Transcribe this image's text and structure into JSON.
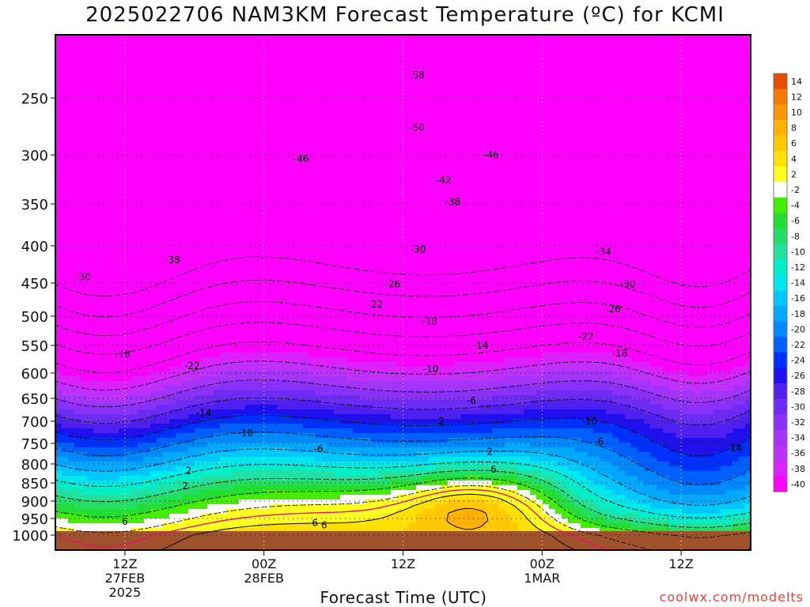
{
  "title": "2025022706 NAM3KM Forecast Temperature (ºC) for KCMI",
  "credit": "coolwx.com/modelts",
  "chart_data": {
    "type": "heatmap",
    "title": "2025022706 NAM3KM Forecast Temperature (ºC) for KCMI",
    "xlabel": "Forecast Time (UTC)",
    "ylabel": "",
    "y_scale": "pressure (reversed, log-like)",
    "y_ticks": [
      250,
      300,
      350,
      400,
      450,
      500,
      550,
      600,
      650,
      700,
      750,
      800,
      850,
      900,
      950,
      1000
    ],
    "y_range": [
      1020,
      200
    ],
    "x_ticks": [
      {
        "label": "12Z",
        "sub1": "27FEB",
        "sub2": "2025",
        "hour": 12
      },
      {
        "label": "00Z",
        "sub1": "28FEB",
        "sub2": "",
        "hour": 24
      },
      {
        "label": "12Z",
        "sub1": "",
        "sub2": "",
        "hour": 36
      },
      {
        "label": "00Z",
        "sub1": "1MAR",
        "sub2": "",
        "hour": 48
      },
      {
        "label": "12Z",
        "sub1": "",
        "sub2": "",
        "hour": 60
      }
    ],
    "x_range": [
      6,
      66
    ],
    "colorbar_ticks": [
      "14",
      "12",
      "10",
      "8",
      "6",
      "4",
      "2",
      "-2",
      "-4",
      "-6",
      "-8",
      "-10",
      "-12",
      "-14",
      "-16",
      "-18",
      "-20",
      "-22",
      "-24",
      "-26",
      "-28",
      "-30",
      "-32",
      "-34",
      "-36",
      "-38",
      "-40"
    ],
    "colorbar_colors": [
      "#e64d00",
      "#f57a00",
      "#fa9600",
      "#ffb000",
      "#ffc800",
      "#ffe000",
      "#ffff20",
      "#ffffff",
      "#44ee00",
      "#22dd33",
      "#22dd66",
      "#22e0a0",
      "#00eec8",
      "#00e8ee",
      "#00c8ff",
      "#00a8ff",
      "#0088ff",
      "#0060ff",
      "#0030ff",
      "#2010ee",
      "#5020f0",
      "#6c2cf4",
      "#8a30f8",
      "#a434fa",
      "#c030fc",
      "#dc20fe",
      "#ff00ff"
    ],
    "isotherm_labels": [
      {
        "text": "-58",
        "hour": 37.2,
        "p": 232
      },
      {
        "text": "-50",
        "hour": 37.2,
        "p": 276
      },
      {
        "text": "-46",
        "hour": 27.2,
        "p": 304
      },
      {
        "text": "-46",
        "hour": 43.6,
        "p": 300
      },
      {
        "text": "-42",
        "hour": 39.5,
        "p": 326
      },
      {
        "text": "-38",
        "hour": 40.3,
        "p": 348
      },
      {
        "text": "-38",
        "hour": 16.1,
        "p": 419
      },
      {
        "text": "-34",
        "hour": 53.3,
        "p": 408
      },
      {
        "text": "-30",
        "hour": 8.4,
        "p": 442
      },
      {
        "text": "-30",
        "hour": 37.3,
        "p": 405
      },
      {
        "text": "-30",
        "hour": 55.4,
        "p": 452
      },
      {
        "text": "-26",
        "hour": 35.1,
        "p": 452
      },
      {
        "text": "-26",
        "hour": 54.1,
        "p": 489
      },
      {
        "text": "-22",
        "hour": 33.6,
        "p": 482
      },
      {
        "text": "-22",
        "hour": 17.8,
        "p": 587
      },
      {
        "text": "-22",
        "hour": 51.8,
        "p": 535
      },
      {
        "text": "-18",
        "hour": 11.8,
        "p": 566
      },
      {
        "text": "-18",
        "hour": 38.3,
        "p": 509
      },
      {
        "text": "-18",
        "hour": 54.7,
        "p": 564
      },
      {
        "text": "-14",
        "hour": 42.7,
        "p": 550
      },
      {
        "text": "-14",
        "hour": 18.8,
        "p": 682
      },
      {
        "text": "-14",
        "hour": 64.6,
        "p": 762
      },
      {
        "text": "-10",
        "hour": 38.4,
        "p": 593
      },
      {
        "text": "-10",
        "hour": 22.4,
        "p": 727
      },
      {
        "text": "-10",
        "hour": 52.1,
        "p": 700
      },
      {
        "text": "-6",
        "hour": 41.9,
        "p": 655
      },
      {
        "text": "-6",
        "hour": 28.7,
        "p": 763
      },
      {
        "text": "-6",
        "hour": 52.9,
        "p": 746
      },
      {
        "text": "2",
        "hour": 39.3,
        "p": 700
      },
      {
        "text": "2",
        "hour": 43.5,
        "p": 770
      },
      {
        "text": "2",
        "hour": 17.5,
        "p": 818
      },
      {
        "text": "2",
        "hour": 17.2,
        "p": 859
      },
      {
        "text": "6",
        "hour": 43.8,
        "p": 815
      },
      {
        "text": "6",
        "hour": 12.0,
        "p": 959
      },
      {
        "text": "6",
        "hour": 28.4,
        "p": 963
      },
      {
        "text": "6",
        "hour": 29.2,
        "p": 970
      }
    ]
  }
}
